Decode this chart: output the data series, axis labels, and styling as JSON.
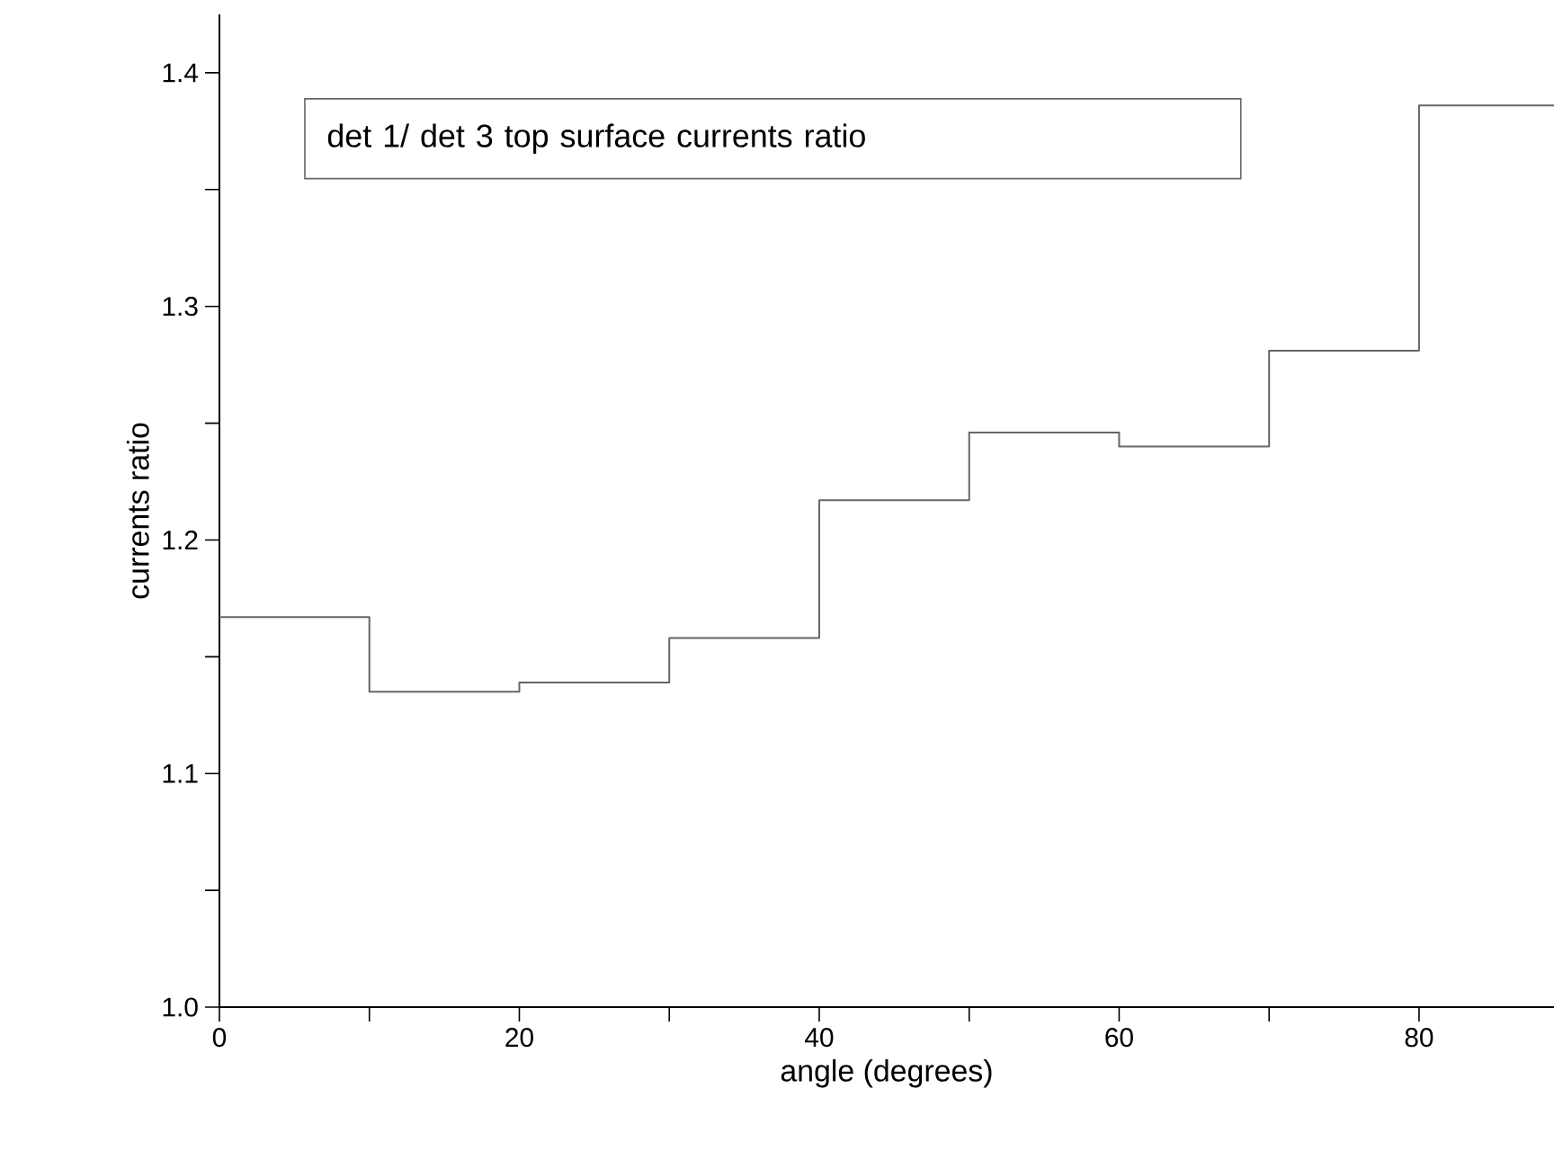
{
  "chart_data": {
    "type": "step",
    "xlabel": "angle (degrees)",
    "ylabel": "currents ratio",
    "annotations": [
      "det 1/ det 3     top surface currents ratio"
    ],
    "x": [
      0,
      10,
      20,
      30,
      40,
      50,
      60,
      70,
      80,
      89
    ],
    "values": [
      1.167,
      1.135,
      1.139,
      1.158,
      1.217,
      1.246,
      1.24,
      1.281,
      1.386,
      1.386
    ],
    "color": "#666666",
    "xlim": [
      0,
      89
    ],
    "ylim": [
      1.0,
      1.425
    ],
    "xticks": [
      0,
      20,
      40,
      60,
      80
    ],
    "yticks": [
      {
        "value": 1.0,
        "label": "1.0"
      },
      {
        "value": 1.1,
        "label": "1.1"
      },
      {
        "value": 1.2,
        "label": "1.2"
      },
      {
        "value": 1.3,
        "label": "1.3"
      },
      {
        "value": 1.4,
        "label": "1.4"
      }
    ],
    "grid": false
  }
}
